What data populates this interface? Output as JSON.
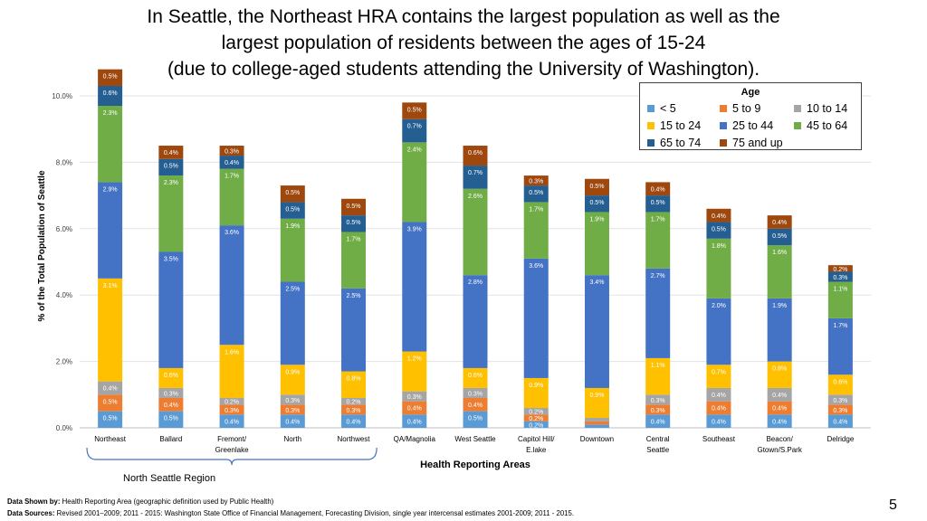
{
  "title_lines": [
    "In Seattle, the Northeast HRA contains the largest population as well as the",
    "largest population of residents between the ages of 15-24",
    "(due to college-aged students attending the University of Washington)."
  ],
  "legend": {
    "title": "Age",
    "items": [
      {
        "label": "< 5",
        "color": "#5b9bd5"
      },
      {
        "label": "5 to 9",
        "color": "#ed7d31"
      },
      {
        "label": "10 to 14",
        "color": "#a5a5a5"
      },
      {
        "label": "15 to 24",
        "color": "#ffc000"
      },
      {
        "label": "25 to 44",
        "color": "#4472c4"
      },
      {
        "label": "45 to 64",
        "color": "#70ad47"
      },
      {
        "label": "65 to 74",
        "color": "#255e91"
      },
      {
        "label": "75 and up",
        "color": "#9e480e"
      }
    ]
  },
  "chart_data": {
    "type": "stacked-bar",
    "title": "In Seattle, the Northeast HRA contains the largest population as well as the largest population of residents between the ages of 15-24 (due to college-aged students attending the University of Washington).",
    "ylabel": "% of the Total Population of Seattle",
    "xlabel": "Health Reporting Areas",
    "ylim": [
      0,
      10
    ],
    "yticks": [
      "0.0%",
      "2.0%",
      "4.0%",
      "6.0%",
      "8.0%",
      "10.0%"
    ],
    "categories": [
      [
        "Northeast"
      ],
      [
        "Ballard"
      ],
      [
        "Fremont/",
        "Greenlake"
      ],
      [
        "North"
      ],
      [
        "Northwest"
      ],
      [
        "QA/Magnolia"
      ],
      [
        "West Seattle"
      ],
      [
        "Capitol Hill/",
        "E.lake"
      ],
      [
        "Downtown"
      ],
      [
        "Central",
        "Seattle"
      ],
      [
        "Southeast"
      ],
      [
        "Beacon/",
        "Gtown/S.Park"
      ],
      [
        "Delridge"
      ]
    ],
    "series": [
      {
        "name": "< 5",
        "values": [
          0.5,
          0.5,
          0.4,
          0.4,
          0.4,
          0.4,
          0.5,
          0.2,
          0.1,
          0.4,
          0.4,
          0.4,
          0.4
        ],
        "labels": [
          "0.5%",
          "0.5%",
          "0.4%",
          "0.4%",
          "0.4%",
          "0.4%",
          "0.5%",
          "0.2%",
          "",
          "0.4%",
          "0.4%",
          "0.4%",
          "0.4%"
        ]
      },
      {
        "name": "5 to 9",
        "values": [
          0.5,
          0.4,
          0.3,
          0.3,
          0.3,
          0.4,
          0.4,
          0.2,
          0.1,
          0.3,
          0.4,
          0.4,
          0.3
        ],
        "labels": [
          "0.5%",
          "0.4%",
          "0.3%",
          "0.3%",
          "0.3%",
          "0.4%",
          "0.4%",
          "0.2%",
          "",
          "0.3%",
          "0.4%",
          "0.4%",
          "0.3%"
        ]
      },
      {
        "name": "10 to 14",
        "values": [
          0.4,
          0.3,
          0.2,
          0.3,
          0.2,
          0.3,
          0.3,
          0.2,
          0.1,
          0.3,
          0.4,
          0.4,
          0.3
        ],
        "labels": [
          "0.4%",
          "0.3%",
          "0.2%",
          "0.3%",
          "0.2%",
          "0.3%",
          "0.3%",
          "0.2%",
          "",
          "0.3%",
          "0.4%",
          "0.4%",
          "0.3%"
        ]
      },
      {
        "name": "15 to 24",
        "values": [
          3.1,
          0.6,
          1.6,
          0.9,
          0.8,
          1.2,
          0.6,
          0.9,
          0.9,
          1.1,
          0.7,
          0.8,
          0.6
        ],
        "labels": [
          "3.1%",
          "0.6%",
          "1.6%",
          "0.9%",
          "0.8%",
          "1.2%",
          "0.6%",
          "0.9%",
          "0.9%",
          "1.1%",
          "0.7%",
          "0.8%",
          "0.6%"
        ]
      },
      {
        "name": "25 to 44",
        "values": [
          2.9,
          3.5,
          3.6,
          2.5,
          2.5,
          3.9,
          2.8,
          3.6,
          3.4,
          2.7,
          2.0,
          1.9,
          1.7
        ],
        "labels": [
          "2.9%",
          "3.5%",
          "3.6%",
          "2.5%",
          "2.5%",
          "3.9%",
          "2.8%",
          "3.6%",
          "3.4%",
          "2.7%",
          "2.0%",
          "1.9%",
          "1.7%"
        ]
      },
      {
        "name": "45 to 64",
        "values": [
          2.3,
          2.3,
          1.7,
          1.9,
          1.7,
          2.4,
          2.6,
          1.7,
          1.9,
          1.7,
          1.8,
          1.6,
          1.1
        ],
        "labels": [
          "2.3%",
          "2.3%",
          "1.7%",
          "1.9%",
          "1.7%",
          "2.4%",
          "2.6%",
          "1.7%",
          "1.9%",
          "1.7%",
          "1.8%",
          "1.6%",
          "1.1%"
        ]
      },
      {
        "name": "65 to 74",
        "values": [
          0.6,
          0.5,
          0.4,
          0.5,
          0.5,
          0.7,
          0.7,
          0.5,
          0.5,
          0.5,
          0.5,
          0.5,
          0.3
        ],
        "labels": [
          "0.6%",
          "0.5%",
          "0.4%",
          "0.5%",
          "0.5%",
          "0.7%",
          "0.7%",
          "0.5%",
          "0.5%",
          "0.5%",
          "0.5%",
          "0.5%",
          "0.3%"
        ]
      },
      {
        "name": "75 and up",
        "values": [
          0.5,
          0.4,
          0.3,
          0.5,
          0.5,
          0.5,
          0.6,
          0.3,
          0.5,
          0.4,
          0.4,
          0.4,
          0.2
        ],
        "labels": [
          "0.5%",
          "0.4%",
          "0.3%",
          "0.5%",
          "0.5%",
          "0.5%",
          "0.6%",
          "0.3%",
          "0.5%",
          "0.4%",
          "0.4%",
          "0.4%",
          "0.2%"
        ]
      }
    ]
  },
  "region_label": "North Seattle Region",
  "footer": {
    "shown_by_label": "Data Shown by:",
    "shown_by_text": "Health Reporting Area (geographic definition used by Public Health)",
    "sources_label": "Data Sources:",
    "sources_text": "Revised 2001–2009; 2011 - 2015: Washington State Office of Financial Management, Forecasting Division, single year intercensal estimates 2001-2009; 2011 - 2015."
  },
  "page_number": "5"
}
